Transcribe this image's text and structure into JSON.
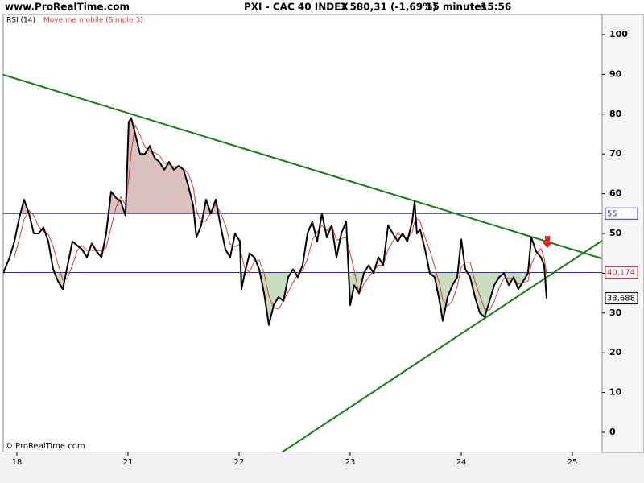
{
  "chart_data": {
    "type": "line",
    "site": "www.ProRealTime.com",
    "title": "PXI - CAC 40 INDEX",
    "price": "3 580,31 (-1,69%)",
    "interval": "15 minutes",
    "time": "15:56",
    "footer": "© ProRealTime.com",
    "xlim": [
      -0.123,
      5.268
    ],
    "xticks": [
      {
        "value": 0,
        "label": "18"
      },
      {
        "value": 1,
        "label": "21"
      },
      {
        "value": 2,
        "label": "22"
      },
      {
        "value": 3,
        "label": "23"
      },
      {
        "value": 4,
        "label": "24"
      },
      {
        "value": 5,
        "label": "25"
      }
    ],
    "ylim": [
      -5.06,
      105.06
    ],
    "yticks": [
      0,
      10,
      20,
      30,
      40,
      50,
      60,
      70,
      80,
      90,
      100
    ],
    "grid": false,
    "x": [
      -0.123,
      -0.065,
      -0.022,
      0.022,
      0.065,
      0.109,
      0.152,
      0.196,
      0.239,
      0.283,
      0.326,
      0.37,
      0.413,
      0.457,
      0.5,
      0.543,
      0.587,
      0.63,
      0.674,
      0.717,
      0.761,
      0.804,
      0.848,
      0.891,
      0.935,
      0.978,
      1.007,
      1.029,
      1.065,
      1.109,
      1.152,
      1.196,
      1.239,
      1.283,
      1.326,
      1.37,
      1.413,
      1.457,
      1.5,
      1.543,
      1.587,
      1.616,
      1.659,
      1.703,
      1.746,
      1.79,
      1.833,
      1.877,
      1.92,
      1.964,
      2.007,
      2.022,
      2.051,
      2.094,
      2.138,
      2.181,
      2.225,
      2.268,
      2.312,
      2.355,
      2.399,
      2.442,
      2.486,
      2.529,
      2.572,
      2.616,
      2.659,
      2.703,
      2.746,
      2.79,
      2.833,
      2.877,
      2.92,
      2.964,
      3.0,
      3.036,
      3.08,
      3.123,
      3.167,
      3.21,
      3.254,
      3.297,
      3.341,
      3.384,
      3.428,
      3.471,
      3.514,
      3.558,
      3.58,
      3.601,
      3.63,
      3.674,
      3.717,
      3.761,
      3.804,
      3.833,
      3.877,
      3.92,
      3.964,
      4.0,
      4.036,
      4.08,
      4.123,
      4.167,
      4.21,
      4.254,
      4.297,
      4.341,
      4.384,
      4.428,
      4.471,
      4.514,
      4.558,
      4.601,
      4.63,
      4.674,
      4.717,
      4.746,
      4.768
    ],
    "series": [
      {
        "name": "RSI (14)",
        "color": "#000000",
        "values": [
          40,
          44,
          48,
          54,
          58.5,
          55,
          50,
          50,
          51.5,
          48,
          41,
          38,
          36,
          42,
          48,
          47,
          46,
          44,
          47.5,
          45.5,
          44,
          50,
          60.5,
          59,
          58,
          54.5,
          78,
          79,
          75,
          70,
          70,
          72,
          69,
          68,
          66,
          68,
          66,
          67,
          66,
          62,
          57,
          49,
          52,
          58.5,
          55,
          58.5,
          52,
          46,
          44,
          50,
          48,
          36,
          40,
          45,
          44,
          41,
          35,
          27,
          32,
          34,
          33,
          39,
          41,
          39,
          42,
          50,
          53,
          48,
          55,
          49,
          52,
          44,
          50,
          53,
          32,
          37,
          35,
          40,
          42,
          40,
          44,
          42,
          52,
          50,
          48,
          50,
          48,
          53,
          58,
          50,
          51,
          46,
          40,
          39,
          33,
          28,
          34,
          37,
          39,
          48.5,
          41,
          39,
          34,
          30,
          29,
          33,
          37,
          39,
          40,
          37,
          39,
          36,
          38,
          40,
          49,
          45.5,
          44,
          42,
          33.688
        ]
      },
      {
        "name": "Moyenne mobile (Simple 3)",
        "color": "#d04040",
        "values": [
          null,
          null,
          44,
          48.7,
          53.5,
          55.8,
          54.5,
          51.7,
          50.5,
          49.8,
          46.8,
          42.3,
          38.3,
          38.7,
          42,
          45.7,
          47,
          45.7,
          45.8,
          45.7,
          45.7,
          46.5,
          51.5,
          56.5,
          59.2,
          57.2,
          63.5,
          70.5,
          77.3,
          74.7,
          71.7,
          70.7,
          70.3,
          69.7,
          67.7,
          67.3,
          66.7,
          67,
          66.3,
          65,
          61.7,
          56,
          52.7,
          53.2,
          55.2,
          57.3,
          55.2,
          52.2,
          47.3,
          46.7,
          47.3,
          44.7,
          41.3,
          40.3,
          43,
          43.3,
          40,
          34.3,
          31.3,
          31,
          33,
          35.3,
          37.7,
          39.7,
          40.7,
          43.7,
          48.3,
          50.3,
          52,
          50.7,
          52,
          48.3,
          48.7,
          49,
          45,
          40.7,
          34.7,
          37.3,
          39,
          40.7,
          42,
          42,
          46,
          48,
          50,
          49.3,
          48.7,
          50.3,
          53,
          53.7,
          53,
          49,
          45.7,
          41.7,
          37.3,
          33.3,
          31.7,
          33,
          36.7,
          41.5,
          42.8,
          42.8,
          38,
          34.3,
          31,
          30.7,
          33,
          36.3,
          38.7,
          38.7,
          38.7,
          37.3,
          37.7,
          38,
          42.3,
          44.8,
          46.2,
          43.8,
          39.9
        ]
      }
    ],
    "reference_lines": [
      {
        "value": 55,
        "label": "55",
        "color": "#3030a0",
        "label_color": "#3030a0",
        "fill": "#dcc0c0",
        "side": "above"
      },
      {
        "value": 40.174,
        "label": "40,174",
        "color": "#3030a0",
        "label_color": "#d03030",
        "fill": "#c8dcc0",
        "side": "below"
      }
    ],
    "current_value": {
      "value": 33.688,
      "label": "33,688",
      "color": "#000000"
    },
    "trend_lines": [
      {
        "color": "#1a7a1a",
        "points": [
          [
            -0.123,
            89.9
          ],
          [
            5.268,
            43.7
          ]
        ]
      },
      {
        "color": "#1a7a1a",
        "points": [
          [
            2.384,
            -5.06
          ],
          [
            5.268,
            48.2
          ]
        ]
      }
    ]
  }
}
